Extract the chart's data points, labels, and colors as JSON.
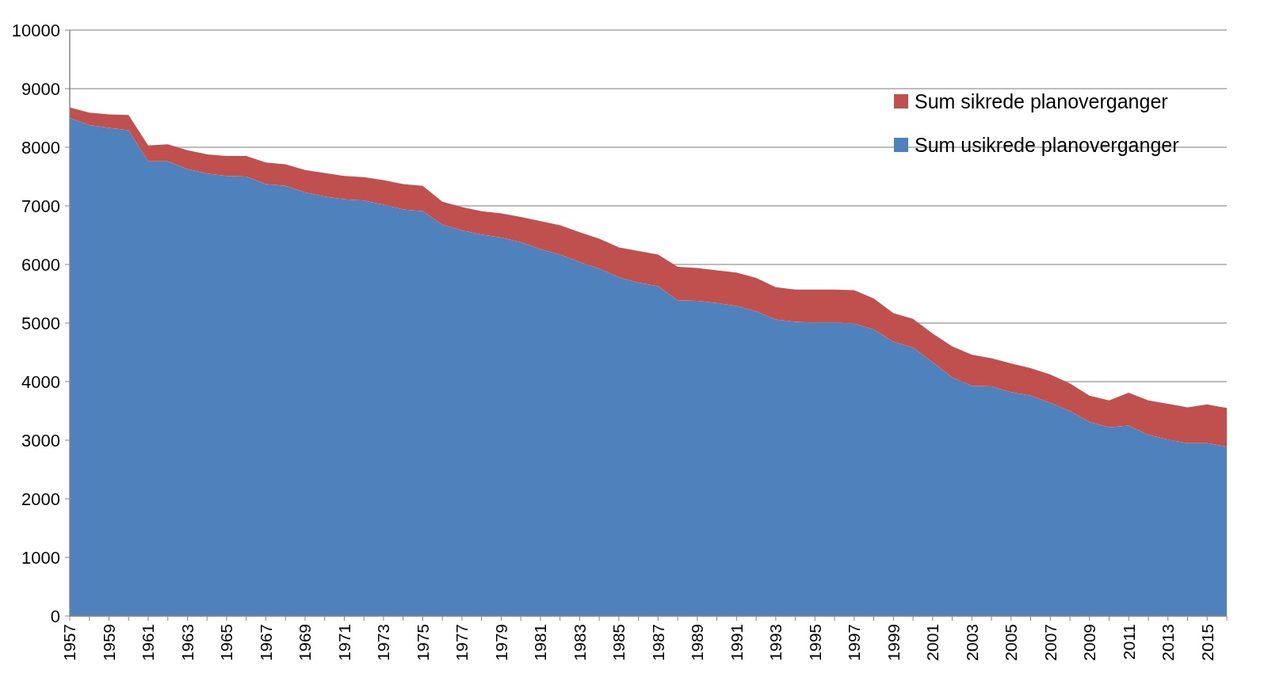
{
  "chart_data": {
    "type": "area",
    "stacked": true,
    "categories": [
      "1957",
      null,
      "1959",
      null,
      "1961",
      null,
      "1963",
      null,
      "1965",
      null,
      "1967",
      null,
      "1969",
      null,
      "1971",
      null,
      "1973",
      null,
      "1975",
      null,
      "1977",
      null,
      "1979",
      null,
      "1981",
      null,
      "1983",
      null,
      "1985",
      null,
      "1987",
      null,
      "1989",
      null,
      "1991",
      null,
      "1993",
      null,
      "1995",
      null,
      "1997",
      null,
      "1999",
      null,
      "2001",
      null,
      "2003",
      null,
      "2005",
      null,
      "2007",
      null,
      "2009",
      null,
      "2011",
      null,
      "2013",
      null,
      "2015",
      null
    ],
    "series": [
      {
        "name": "Sum usikrede planoverganger",
        "color": "#4f81bd",
        "values": [
          8500,
          8380,
          8330,
          8290,
          7760,
          7760,
          7630,
          7550,
          7510,
          7500,
          7370,
          7340,
          7230,
          7160,
          7110,
          7090,
          7020,
          6940,
          6910,
          6680,
          6580,
          6510,
          6460,
          6380,
          6260,
          6170,
          6040,
          5930,
          5780,
          5690,
          5630,
          5390,
          5380,
          5340,
          5290,
          5200,
          5060,
          5020,
          5010,
          5010,
          4990,
          4890,
          4680,
          4580,
          4330,
          4070,
          3930,
          3920,
          3820,
          3760,
          3640,
          3500,
          3310,
          3220,
          3250,
          3090,
          3010,
          2950,
          2950,
          2890
        ]
      },
      {
        "name": "Sum sikrede planoverganger",
        "color": "#c0504d",
        "values": [
          180,
          210,
          230,
          260,
          270,
          290,
          320,
          330,
          340,
          350,
          370,
          370,
          380,
          400,
          400,
          400,
          420,
          430,
          430,
          390,
          400,
          400,
          410,
          430,
          480,
          500,
          510,
          510,
          510,
          540,
          540,
          570,
          560,
          560,
          570,
          570,
          550,
          550,
          560,
          560,
          570,
          530,
          490,
          490,
          490,
          530,
          530,
          480,
          490,
          470,
          480,
          470,
          450,
          460,
          560,
          590,
          610,
          610,
          660,
          660
        ]
      }
    ],
    "ylim": [
      0,
      10000
    ],
    "yticks": [
      0,
      1000,
      2000,
      3000,
      4000,
      5000,
      6000,
      7000,
      8000,
      9000,
      10000
    ],
    "grid": "y",
    "legend": "top right"
  }
}
